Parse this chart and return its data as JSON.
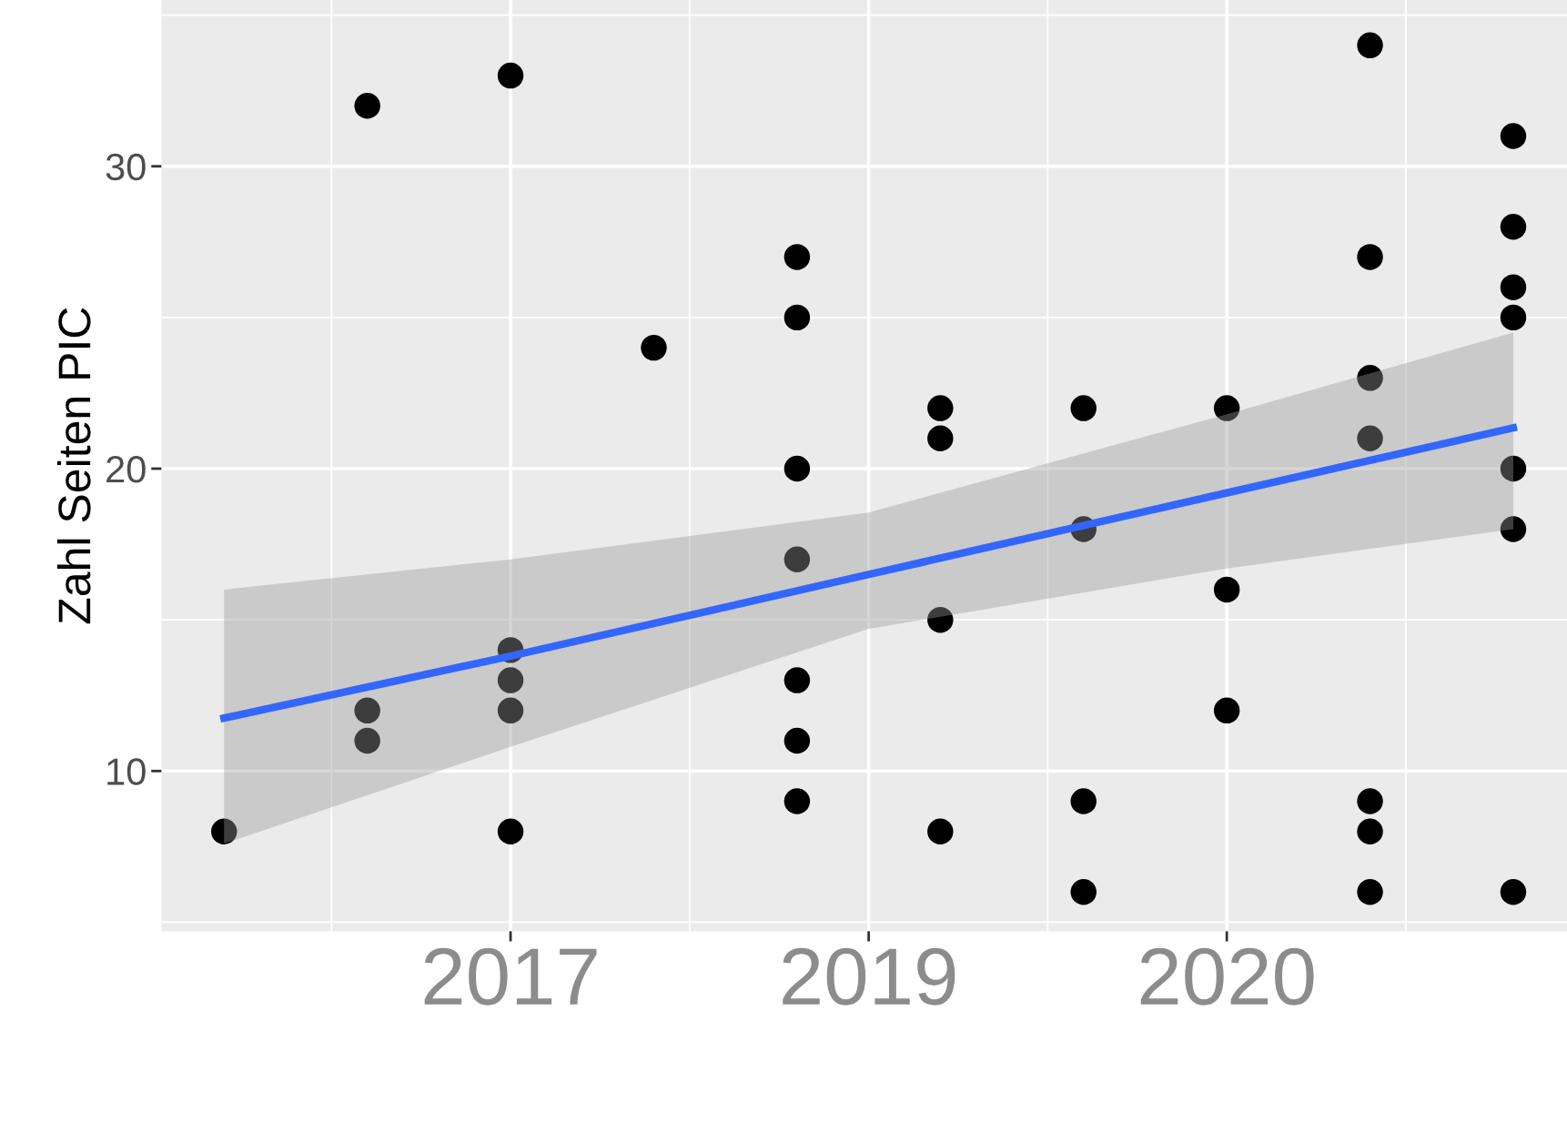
{
  "chart_data": {
    "type": "scatter",
    "ylabel": "Zahl Seiten PIC",
    "ylim": [
      4.7,
      35.5
    ],
    "yticks": [
      10,
      20,
      30
    ],
    "grid": true,
    "marker": "circle",
    "categories": [
      null,
      null,
      null,
      null,
      "2017",
      null,
      null,
      null,
      null,
      "2019",
      null,
      null,
      null,
      null,
      "2020",
      null,
      null,
      null,
      null
    ],
    "series": [
      {
        "color": "#000000",
        "values": [
          8,
          null,
          32,
          null,
          33,
          null,
          24,
          null,
          27,
          null,
          22,
          null,
          22,
          null,
          22,
          null,
          34,
          null,
          31
        ]
      },
      {
        "color": "#000000",
        "values": [
          null,
          null,
          12,
          null,
          14,
          null,
          null,
          null,
          25,
          null,
          21,
          null,
          18,
          null,
          16,
          null,
          27,
          null,
          28
        ]
      },
      {
        "color": "#000000",
        "values": [
          null,
          null,
          11,
          null,
          13,
          null,
          null,
          null,
          20,
          null,
          15,
          null,
          9,
          null,
          12,
          null,
          23,
          null,
          26
        ]
      },
      {
        "color": "#000000",
        "values": [
          null,
          null,
          null,
          null,
          12,
          null,
          null,
          null,
          17,
          null,
          8,
          null,
          6,
          null,
          null,
          null,
          21,
          null,
          25
        ]
      },
      {
        "color": "#000000",
        "values": [
          null,
          null,
          null,
          null,
          8,
          null,
          null,
          null,
          13,
          null,
          null,
          null,
          null,
          null,
          null,
          null,
          9,
          null,
          20
        ]
      },
      {
        "color": "#000000",
        "values": [
          null,
          null,
          null,
          null,
          null,
          null,
          null,
          null,
          11,
          null,
          null,
          null,
          null,
          null,
          null,
          null,
          8,
          null,
          18
        ]
      },
      {
        "color": "#000000",
        "values": [
          null,
          null,
          null,
          null,
          null,
          null,
          null,
          null,
          9,
          null,
          null,
          null,
          null,
          null,
          null,
          null,
          6,
          null,
          6
        ]
      },
      {
        "type": "line",
        "marker": "none",
        "color": "#3366ff",
        "values": [
          11.75,
          null,
          null,
          null,
          13.8,
          null,
          null,
          null,
          null,
          16.5,
          null,
          null,
          null,
          null,
          19.2,
          null,
          null,
          null,
          21.35
        ],
        "lower": [
          7.6,
          null,
          null,
          null,
          10.8,
          null,
          null,
          null,
          null,
          14.7,
          null,
          null,
          null,
          null,
          16.7,
          null,
          null,
          null,
          18.0
        ],
        "upper": [
          16.0,
          null,
          null,
          null,
          17.0,
          null,
          null,
          null,
          null,
          18.55,
          null,
          null,
          null,
          null,
          21.8,
          null,
          null,
          null,
          24.5
        ]
      }
    ]
  }
}
